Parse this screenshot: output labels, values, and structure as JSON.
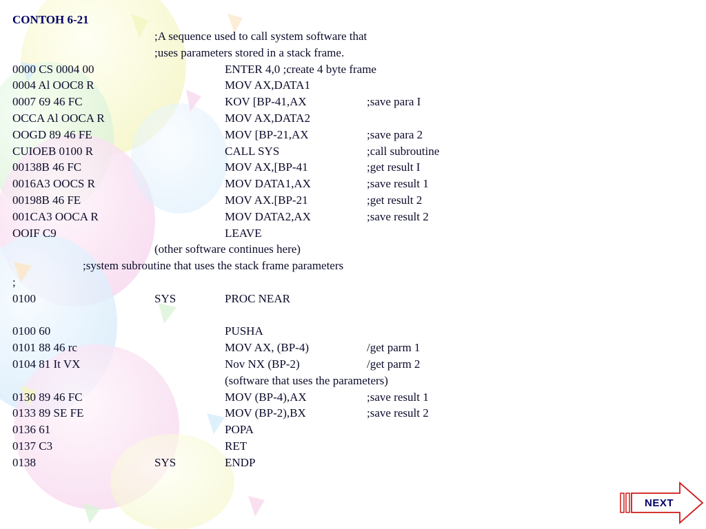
{
  "title": "CONTOH 6-21",
  "lines": [
    {
      "kind": "note",
      "text": ";A sequence used to call system software that"
    },
    {
      "kind": "note",
      "text": ";uses parameters stored in a stack frame."
    },
    {
      "addr": "0000  CS  0004 00",
      "label": "",
      "instr": "ENTER 4,0  ;create 4 byte frame",
      "comment": ""
    },
    {
      "addr": "0004  Al  OOC8 R",
      "label": "",
      "instr": "MOV  AX,DATA1",
      "comment": ""
    },
    {
      "addr": "0007  69  46   FC",
      "label": "",
      "instr": "KOV  [BP-41,AX",
      "comment": ";save para I"
    },
    {
      "addr": "OCCA  Al  OOCA R",
      "label": "",
      "instr": "MOV  AX,DATA2",
      "comment": ""
    },
    {
      "addr": "OOGD  89  46   FE",
      "label": "",
      "instr": "MOV  [BP-21,AX",
      "comment": ";save para 2"
    },
    {
      "addr": "CUIOEB 0100 R",
      "label": "",
      "instr": "CALL          SYS",
      "comment": ";call subroutine"
    },
    {
      "addr": "00138B 46 FC",
      "label": "",
      "instr": "MOV  AX,[BP-41",
      "comment": ";get result I"
    },
    {
      "addr": "0016A3 OOCS R",
      "label": "",
      "instr": "MOV  DATA1,AX",
      "comment": ";save result 1"
    },
    {
      "addr": "00198B 46 FE",
      "label": "",
      "instr": "MOV  AX.[BP-21",
      "comment": ";get result 2"
    },
    {
      "addr": "001CA3 OOCA R",
      "label": "",
      "instr": "MOV  DATA2,AX",
      "comment": ";save result 2"
    },
    {
      "addr": "OOIF C9",
      "label": "",
      "instr": "LEAVE",
      "comment": ""
    },
    {
      "kind": "note",
      "text": "(other software continues here)"
    },
    {
      "kind": "note3",
      "text": ";system subroutine that uses the stack frame parameters"
    },
    {
      "addr": ";",
      "label": "",
      "instr": "",
      "comment": ""
    },
    {
      "addr": "0100",
      "label": "SYS",
      "instr": "PROC NEAR",
      "comment": ""
    },
    {
      "kind": "blank"
    },
    {
      "addr": "0100 60",
      "label": "",
      "instr": "PUSHA",
      "comment": ""
    },
    {
      "addr": "0101 88 46 rc",
      "label": "",
      "instr": "MOV AX, (BP-4)",
      "comment": "/get parm 1"
    },
    {
      "addr": "0104 81 It VX",
      "label": "",
      "instr": "Nov NX  (BP-2)",
      "comment": "/get parm 2"
    },
    {
      "kind": "note2",
      "text": "(software that uses the parameters)"
    },
    {
      "addr": "0130  89 46 FC",
      "label": "",
      "instr": "MOV  (BP-4),AX",
      "comment": ";save result 1"
    },
    {
      "addr": "0133  89 SE FE",
      "label": "",
      "instr": "MOV  (BP-2),BX",
      "comment": ";save result 2"
    },
    {
      "addr": "0136  61",
      "label": "",
      "instr": "POPA",
      "comment": ""
    },
    {
      "addr": "0137  C3",
      "label": "",
      "instr": "RET",
      "comment": ""
    },
    {
      "addr": "0138",
      "label": "SYS",
      "instr": "ENDP",
      "comment": ""
    }
  ],
  "next_button": {
    "label": "NEXT"
  },
  "colors": {
    "title": "#000066",
    "text": "#0b0b2b",
    "arrow_fill": "#ffffff",
    "arrow_stroke": "#d01818"
  }
}
